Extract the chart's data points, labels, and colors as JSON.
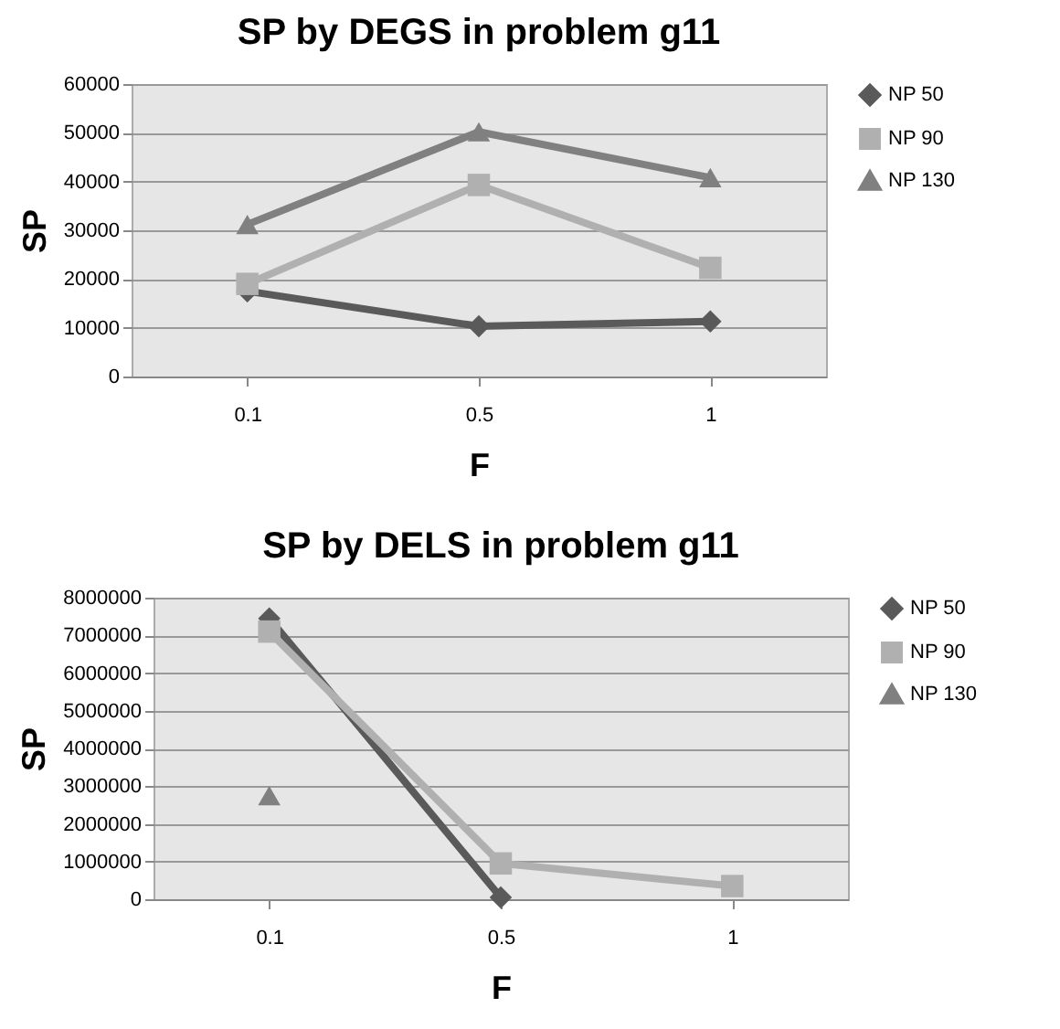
{
  "chart_data": [
    {
      "type": "line",
      "title": "SP by DEGS in problem g11",
      "xlabel": "F",
      "ylabel": "SP",
      "categories": [
        "0.1",
        "0.5",
        "1"
      ],
      "ylim": [
        0,
        60000
      ],
      "yticks": [
        0,
        10000,
        20000,
        30000,
        40000,
        50000,
        60000
      ],
      "grid": "y",
      "legend": "right",
      "series": [
        {
          "name": "NP 50",
          "color": "#5a5a5a",
          "marker": "diamond",
          "values": [
            17500,
            10300,
            11300
          ]
        },
        {
          "name": "NP 90",
          "color": "#b0b0b0",
          "marker": "square",
          "values": [
            19000,
            39300,
            22300
          ]
        },
        {
          "name": "NP 130",
          "color": "#808080",
          "marker": "triangle",
          "values": [
            31200,
            50200,
            40800
          ]
        }
      ]
    },
    {
      "type": "line",
      "title": "SP by DELS in problem g11",
      "xlabel": "F",
      "ylabel": "SP",
      "categories": [
        "0.1",
        "0.5",
        "1"
      ],
      "ylim": [
        0,
        8000000
      ],
      "yticks": [
        0,
        1000000,
        2000000,
        3000000,
        4000000,
        5000000,
        6000000,
        7000000,
        8000000
      ],
      "grid": "y",
      "legend": "right",
      "series": [
        {
          "name": "NP 50",
          "color": "#5a5a5a",
          "marker": "diamond",
          "values": [
            7450000,
            50000,
            null
          ]
        },
        {
          "name": "NP 90",
          "color": "#b0b0b0",
          "marker": "square",
          "values": [
            7100000,
            950000,
            350000
          ]
        },
        {
          "name": "NP 130",
          "color": "#808080",
          "marker": "triangle",
          "values": [
            2750000,
            null,
            null
          ]
        }
      ]
    }
  ]
}
